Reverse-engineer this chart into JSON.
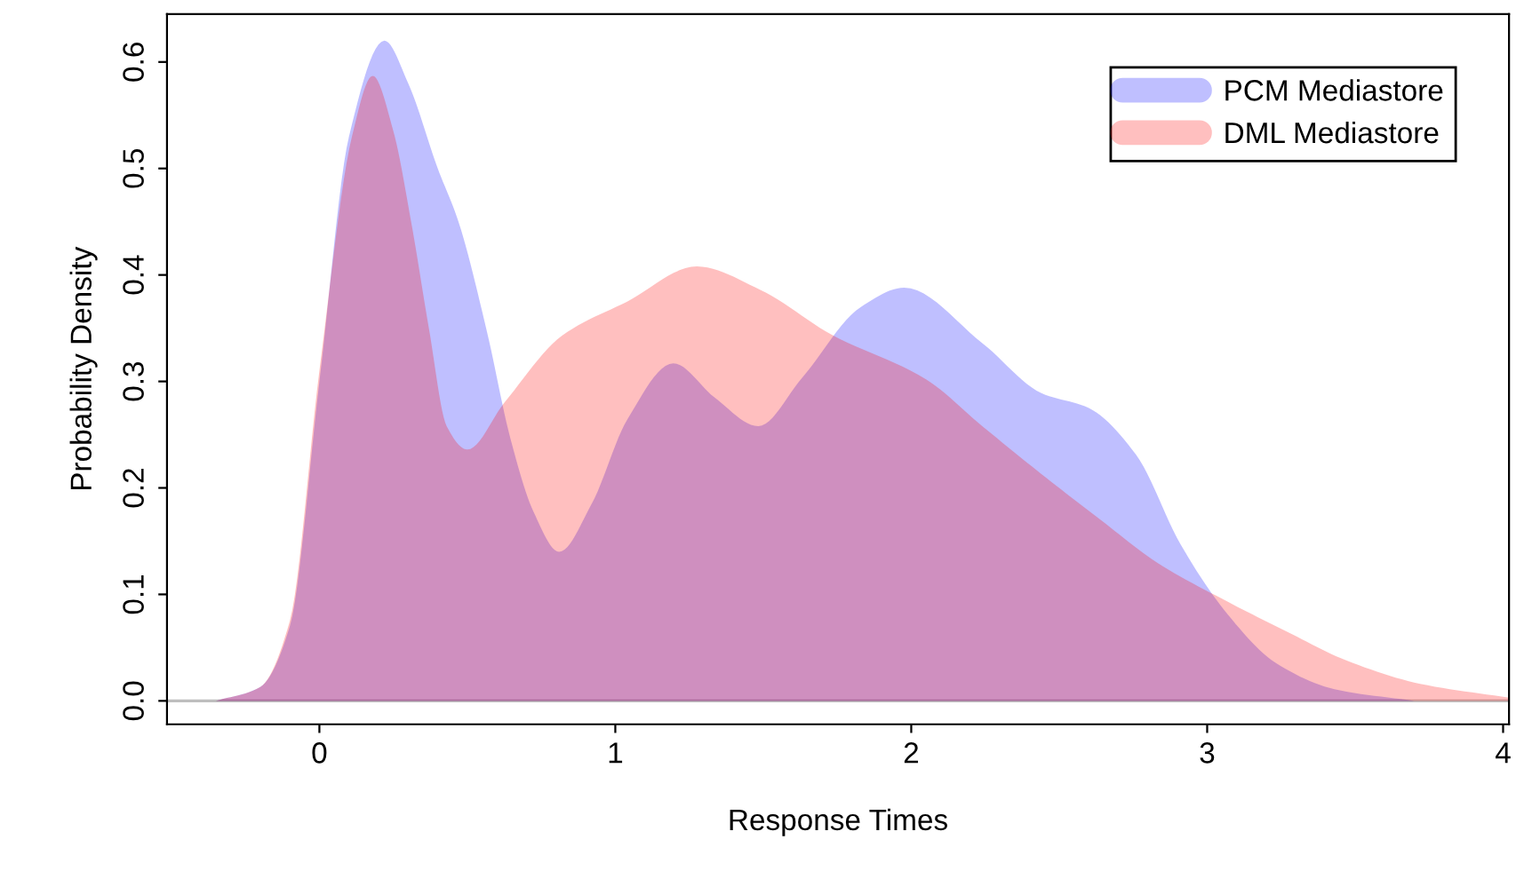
{
  "chart_data": {
    "type": "area",
    "xlabel": "Response Times",
    "ylabel": "Probability Density",
    "xlim": [
      -0.515,
      4.02
    ],
    "ylim": [
      -0.022,
      0.645
    ],
    "xticks": [
      0,
      1,
      2,
      3,
      4
    ],
    "yticks": [
      {
        "value": 0,
        "label": "0.0"
      },
      {
        "value": 0.1,
        "label": "0.1"
      },
      {
        "value": 0.2,
        "label": "0.2"
      },
      {
        "value": 0.3,
        "label": "0.3"
      },
      {
        "value": 0.4,
        "label": "0.4"
      },
      {
        "value": 0.5,
        "label": "0.5"
      },
      {
        "value": 0.6,
        "label": "0.6"
      }
    ],
    "legend": "top right",
    "grid": false,
    "ref_lines": [
      {
        "axis": "y",
        "value": 0,
        "color": "#bebebe"
      }
    ],
    "series": [
      {
        "name": "PCM Mediastore",
        "color": "#0000ff",
        "x": [
          -0.35,
          -0.2,
          -0.1,
          0,
          0.1,
          0.22,
          0.3,
          0.4,
          0.47,
          0.566,
          0.645,
          0.723,
          0.81,
          0.92,
          1.04,
          1.196,
          1.335,
          1.483,
          1.63,
          1.83,
          1.976,
          2.24,
          2.44,
          2.6,
          2.76,
          2.91,
          3.07,
          3.23,
          3.43,
          3.7
        ],
        "values": [
          0,
          0.013,
          0.07,
          0.3,
          0.53,
          0.62,
          0.58,
          0.5,
          0.45,
          0.347,
          0.247,
          0.178,
          0.14,
          0.185,
          0.264,
          0.317,
          0.285,
          0.258,
          0.303,
          0.37,
          0.388,
          0.336,
          0.289,
          0.275,
          0.231,
          0.147,
          0.081,
          0.036,
          0.011,
          0
        ]
      },
      {
        "name": "DML Mediastore",
        "color": "#ff0000",
        "x": [
          -0.35,
          -0.2,
          -0.1,
          0,
          0.11,
          0.18,
          0.25,
          0.31,
          0.37,
          0.43,
          0.5,
          0.625,
          0.82,
          1.04,
          1.276,
          1.49,
          1.73,
          2.05,
          2.24,
          2.44,
          2.64,
          2.83,
          3.07,
          3.27,
          3.47,
          3.72,
          4.02
        ],
        "values": [
          0,
          0.013,
          0.075,
          0.31,
          0.53,
          0.587,
          0.535,
          0.45,
          0.35,
          0.258,
          0.236,
          0.28,
          0.343,
          0.375,
          0.408,
          0.386,
          0.344,
          0.302,
          0.258,
          0.213,
          0.17,
          0.13,
          0.093,
          0.065,
          0.038,
          0.016,
          0.003
        ]
      }
    ]
  }
}
